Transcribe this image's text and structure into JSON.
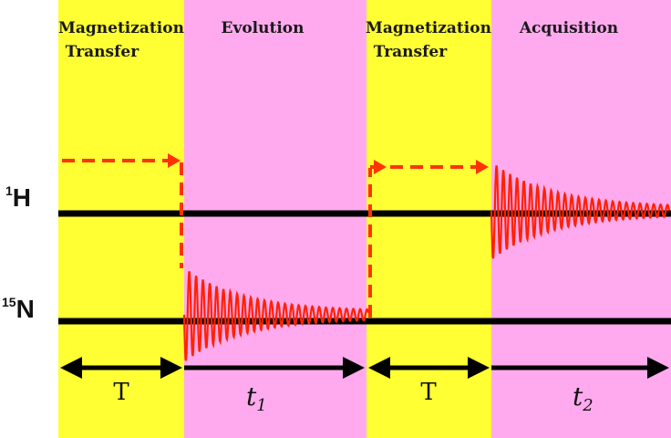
{
  "panels": [
    {
      "title_line1": "Magnetization",
      "title_line2": "Transfer",
      "color": "#ffff33"
    },
    {
      "title_line1": "Evolution",
      "title_line2": "",
      "color": "#ffaaee"
    },
    {
      "title_line1": "Magnetization",
      "title_line2": "Transfer",
      "color": "#ffff33"
    },
    {
      "title_line1": "Acquisition",
      "title_line2": "",
      "color": "#ffaaee"
    }
  ],
  "channels": {
    "h": {
      "mass": "1",
      "symbol": "H"
    },
    "n": {
      "mass": "15",
      "symbol": "N"
    }
  },
  "timeline": {
    "mix1_label": "T",
    "evolution_label": "t",
    "evolution_sub": "1",
    "mix2_label": "T",
    "acquisition_label": "t",
    "acquisition_sub": "2"
  },
  "colors": {
    "signal": "#ff2200",
    "transfer_path": "#ff3300",
    "line": "#000000"
  }
}
